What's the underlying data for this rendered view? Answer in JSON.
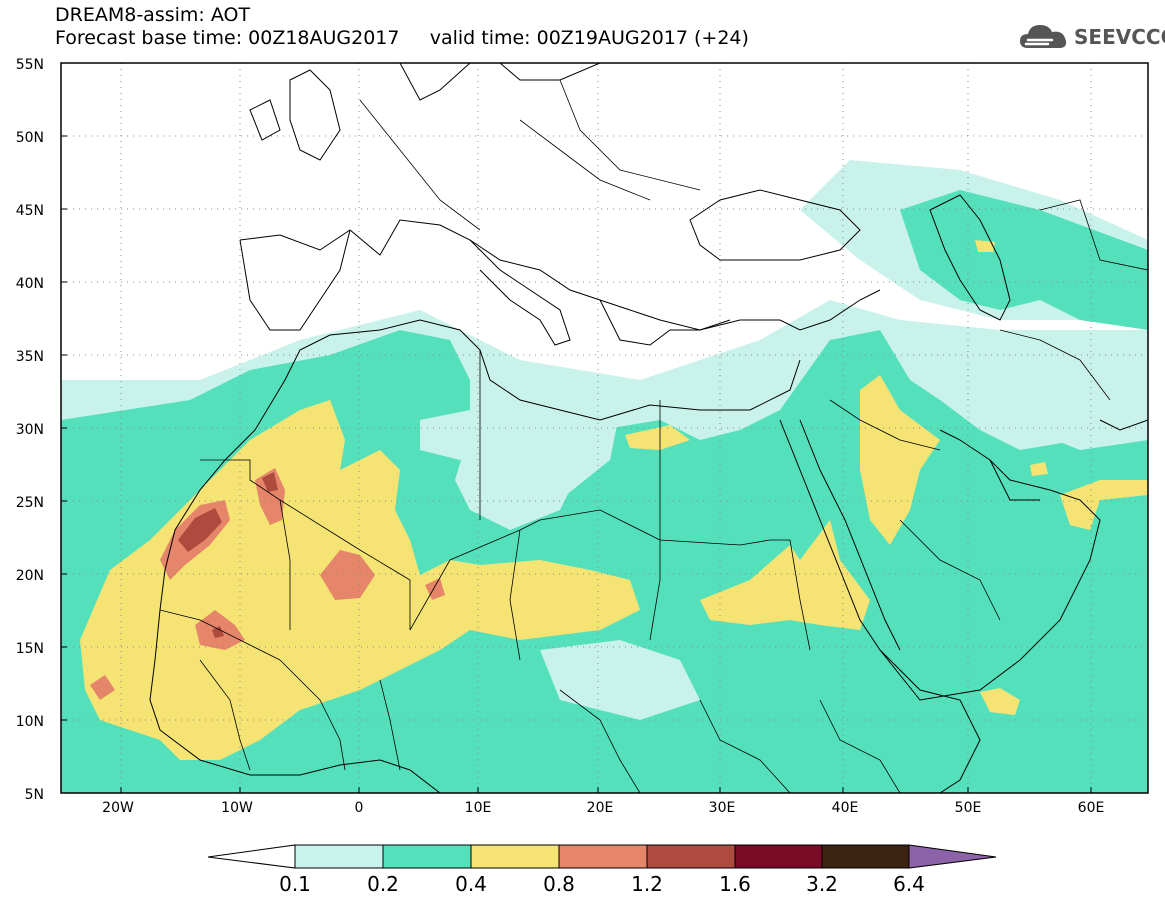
{
  "title": {
    "line1": "DREAM8-assim: AOT",
    "base_label": "Forecast base time: 00Z18AUG2017",
    "valid_label": "valid time: 00Z19AUG2017 (+24)"
  },
  "logo": {
    "text": "SEEVCCC",
    "icon": "cloud-icon",
    "color": "#555555"
  },
  "map": {
    "lon_ticks": [
      "20W",
      "10W",
      "0",
      "10E",
      "20E",
      "30E",
      "40E",
      "50E",
      "60E"
    ],
    "lat_ticks": [
      "55N",
      "50N",
      "45N",
      "40N",
      "35N",
      "30N",
      "25N",
      "20N",
      "15N",
      "10N",
      "5N"
    ],
    "lon_range": [
      -25,
      65
    ],
    "lat_range": [
      5,
      55
    ],
    "grid": "dotted"
  },
  "legend": {
    "labels": [
      "0.1",
      "0.2",
      "0.4",
      "0.8",
      "1.2",
      "1.6",
      "3.2",
      "6.4"
    ],
    "colors": [
      "#ffffff",
      "#c8f2ea",
      "#55e0bc",
      "#f5e373",
      "#e5866a",
      "#ad4b3e",
      "#7a0b26",
      "#3b2211",
      "#8c63a8"
    ]
  }
}
